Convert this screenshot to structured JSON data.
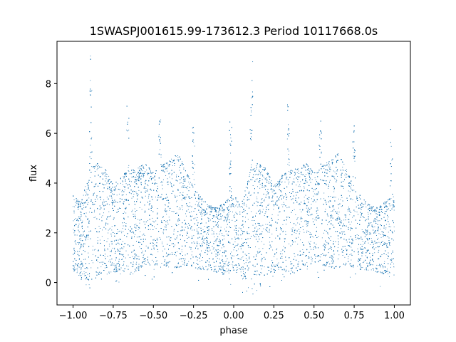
{
  "chart_data": {
    "type": "scatter",
    "title": "1SWASPJ001615.99-173612.3 Period 10117668.0s",
    "xlabel": "phase",
    "ylabel": "flux",
    "xlim": [
      -1.1,
      1.1
    ],
    "ylim": [
      -0.9,
      9.7
    ],
    "xticks": [
      -1.0,
      -0.75,
      -0.5,
      -0.25,
      0.0,
      0.25,
      0.5,
      0.75,
      1.0
    ],
    "xtick_labels": [
      "−1.00",
      "−0.75",
      "−0.50",
      "−0.25",
      "0.00",
      "0.25",
      "0.50",
      "0.75",
      "1.00"
    ],
    "yticks": [
      0,
      2,
      4,
      6,
      8
    ],
    "ytick_labels": [
      "0",
      "2",
      "4",
      "6",
      "8"
    ],
    "grid": false,
    "series": [
      {
        "color": "#1f77b4",
        "point_count": 14000,
        "x_range": [
          -1.0,
          1.0
        ],
        "repeats_every": 1.0,
        "envelope": [
          {
            "phase": 0.0,
            "upper": 3.5,
            "lower": 0.5
          },
          {
            "phase": 0.05,
            "upper": 3.2,
            "lower": 0.2
          },
          {
            "phase": 0.1,
            "upper": 4.5,
            "lower": 0.1
          },
          {
            "phase": 0.15,
            "upper": 4.8,
            "lower": 0.2
          },
          {
            "phase": 0.2,
            "upper": 4.6,
            "lower": 0.3
          },
          {
            "phase": 0.25,
            "upper": 3.9,
            "lower": 0.4
          },
          {
            "phase": 0.3,
            "upper": 4.3,
            "lower": 0.5
          },
          {
            "phase": 0.35,
            "upper": 4.5,
            "lower": 0.3
          },
          {
            "phase": 0.4,
            "upper": 4.6,
            "lower": 0.4
          },
          {
            "phase": 0.45,
            "upper": 4.8,
            "lower": 0.7
          },
          {
            "phase": 0.5,
            "upper": 4.4,
            "lower": 0.7
          },
          {
            "phase": 0.55,
            "upper": 4.7,
            "lower": 0.7
          },
          {
            "phase": 0.6,
            "upper": 4.9,
            "lower": 0.6
          },
          {
            "phase": 0.65,
            "upper": 5.2,
            "lower": 0.6
          },
          {
            "phase": 0.7,
            "upper": 4.6,
            "lower": 0.7
          },
          {
            "phase": 0.75,
            "upper": 3.8,
            "lower": 0.6
          },
          {
            "phase": 0.8,
            "upper": 3.4,
            "lower": 0.5
          },
          {
            "phase": 0.85,
            "upper": 3.1,
            "lower": 0.5
          },
          {
            "phase": 0.9,
            "upper": 3.0,
            "lower": 0.4
          },
          {
            "phase": 0.95,
            "upper": 3.3,
            "lower": 0.3
          },
          {
            "phase": 1.0,
            "upper": 3.5,
            "lower": 0.5
          }
        ],
        "spikes": [
          {
            "phase": 0.11,
            "max_flux": 9.2
          },
          {
            "phase": 0.34,
            "max_flux": 7.3
          },
          {
            "phase": 0.54,
            "max_flux": 6.6
          },
          {
            "phase": 0.75,
            "max_flux": 6.3
          },
          {
            "phase": 0.98,
            "max_flux": 6.5
          }
        ]
      }
    ]
  }
}
